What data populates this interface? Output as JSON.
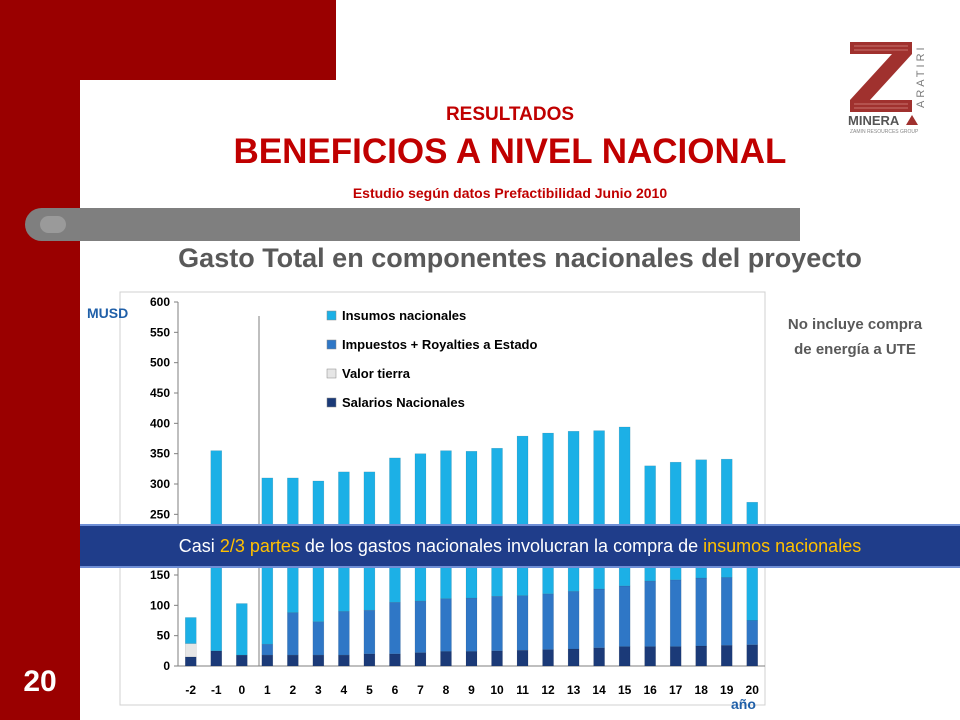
{
  "page_number": "20",
  "header": {
    "kicker": "RESULTADOS",
    "title": "BENEFICIOS A NIVEL NACIONAL",
    "subtitle": "Estudio  según  datos Prefactibilidad Junio 2010"
  },
  "logo": {
    "brand": "MINERA",
    "vertical": "ARATIRI",
    "tagline": "ZAMIN RESOURCES GROUP"
  },
  "note": {
    "line1": "No incluye compra",
    "line2": "de energía a UTE"
  },
  "callout": {
    "part1": "Casi ",
    "highlight1": "2/3 partes",
    "part2": " de los gastos nacionales involucran la compra de ",
    "highlight2": "insumos nacionales"
  },
  "colors": {
    "brand_red": "#9a0000",
    "title_red": "#c00000",
    "insumos": "#1cb0e6",
    "impuestos": "#2f77c6",
    "valor_tierra": "#e6e6e6",
    "salarios": "#1b3a78"
  },
  "chart_data": {
    "type": "bar",
    "stacked": true,
    "title": "Gasto Total en componentes nacionales del proyecto",
    "ylabel": "MUSD",
    "xlabel": "año",
    "ylim": [
      0,
      600
    ],
    "yticks": [
      0,
      50,
      100,
      150,
      200,
      250,
      300,
      350,
      400,
      450,
      500,
      550,
      600
    ],
    "grid": false,
    "legend_position": "top-center",
    "categories": [
      "-2",
      "-1",
      "0",
      "1",
      "2",
      "3",
      "4",
      "5",
      "6",
      "7",
      "8",
      "9",
      "10",
      "11",
      "12",
      "13",
      "14",
      "15",
      "16",
      "17",
      "18",
      "19",
      "20"
    ],
    "series": [
      {
        "name": "Salarios Nacionales",
        "color": "#1b3a78",
        "values": [
          15,
          25,
          18,
          18,
          18,
          18,
          18,
          20,
          20,
          22,
          24,
          24,
          25,
          26,
          27,
          28,
          30,
          32,
          32,
          32,
          33,
          34,
          35
        ]
      },
      {
        "name": "Valor tierra",
        "color": "#e6e6e6",
        "values": [
          22,
          0,
          0,
          0,
          0,
          0,
          0,
          0,
          0,
          0,
          0,
          0,
          0,
          0,
          0,
          0,
          0,
          0,
          0,
          0,
          0,
          0,
          0
        ]
      },
      {
        "name": "Impuestos + Royalties a Estado",
        "color": "#2f77c6",
        "values": [
          0,
          0,
          0,
          18,
          70,
          55,
          72,
          72,
          85,
          85,
          87,
          88,
          90,
          90,
          92,
          95,
          97,
          100,
          108,
          110,
          112,
          112,
          40
        ]
      },
      {
        "name": "Insumos nacionales",
        "color": "#1cb0e6",
        "values": [
          43,
          330,
          85,
          274,
          222,
          232,
          230,
          228,
          238,
          243,
          244,
          242,
          244,
          263,
          265,
          264,
          261,
          262,
          190,
          194,
          195,
          195,
          195
        ]
      }
    ],
    "legend_order": [
      "Insumos nacionales",
      "Impuestos + Royalties a Estado",
      "Valor tierra",
      "Salarios Nacionales"
    ]
  }
}
